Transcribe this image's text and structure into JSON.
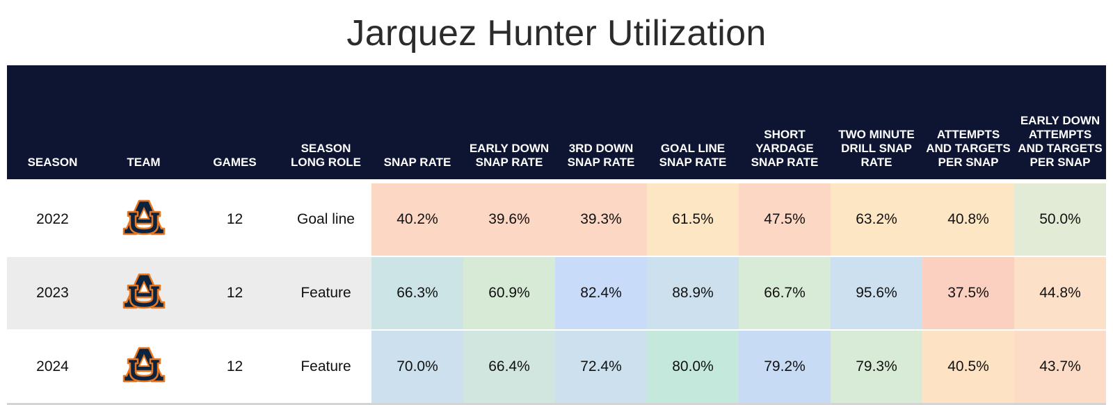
{
  "title": "Jarquez Hunter Utilization",
  "columns": [
    "SEASON",
    "TEAM",
    "GAMES",
    "SEASON LONG ROLE",
    "SNAP RATE",
    "EARLY DOWN SNAP RATE",
    "3RD DOWN SNAP RATE",
    "GOAL LINE SNAP RATE",
    "SHORT YARDAGE SNAP RATE",
    "TWO MINUTE DRILL SNAP RATE",
    "ATTEMPTS AND TARGETS PER SNAP",
    "EARLY DOWN ATTEMPTS AND TARGETS PER SNAP"
  ],
  "header_colors": {
    "background": "#0d1533",
    "text": "#ffffff"
  },
  "team_logo": {
    "icon": "auburn-au-logo-icon",
    "navy": "#0c2340",
    "orange": "#e87722"
  },
  "rows": [
    {
      "season": "2022",
      "games": "12",
      "role": "Goal line",
      "metrics": [
        "40.2%",
        "39.6%",
        "39.3%",
        "61.5%",
        "47.5%",
        "63.2%",
        "40.8%",
        "50.0%"
      ],
      "colors": [
        "#fcd7c4",
        "#fcd7c4",
        "#fcd7c4",
        "#fde6c4",
        "#fcd7c4",
        "#fde6c4",
        "#fde6c4",
        "#e2ebd6"
      ]
    },
    {
      "season": "2023",
      "games": "12",
      "role": "Feature",
      "metrics": [
        "66.3%",
        "60.9%",
        "82.4%",
        "88.9%",
        "66.7%",
        "95.6%",
        "37.5%",
        "44.8%"
      ],
      "colors": [
        "#cde4e6",
        "#d6ead6",
        "#c8dbf8",
        "#cde0ee",
        "#d8ebd6",
        "#cde0f0",
        "#fcd0c0",
        "#fde0c8"
      ]
    },
    {
      "season": "2024",
      "games": "12",
      "role": "Feature",
      "metrics": [
        "70.0%",
        "66.4%",
        "72.4%",
        "80.0%",
        "79.2%",
        "79.3%",
        "40.5%",
        "43.7%"
      ],
      "colors": [
        "#cde0ee",
        "#d2e6e0",
        "#cde0ee",
        "#c4e8dc",
        "#c8dbf4",
        "#d8ebd6",
        "#fde2c4",
        "#fcdcc6"
      ]
    }
  ]
}
